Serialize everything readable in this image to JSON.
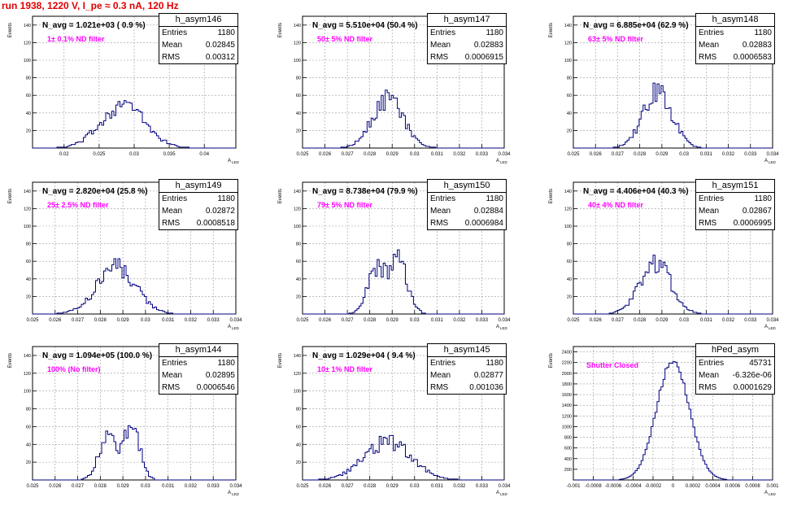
{
  "title": "run 1938,  1220 V, I_pe ≈ 0.3 nA, 120 Hz",
  "colors": {
    "title": "#e00000",
    "hist": "#000080",
    "annotation": "#ff00ff",
    "grid": "#999999"
  },
  "ylabel": "Events",
  "xlabel": "A",
  "xlabel_sub": "LED",
  "chart_data": [
    {
      "type": "histogram",
      "name": "h_asym146",
      "stats": {
        "entries": "1180",
        "mean": "0.02845",
        "rms": "0.00312"
      },
      "navg": "N_avg = 1.021e+03 ( 0.9 %)",
      "filter": "1± 0.1% ND filter",
      "xlim": [
        0.0155,
        0.0445
      ],
      "ylim": [
        0,
        150
      ],
      "xticks": [
        "0.02",
        "0.025",
        "0.03",
        "0.035",
        "0.04"
      ],
      "yticks": [
        "20",
        "40",
        "60",
        "80",
        "100",
        "120",
        "140"
      ],
      "peaks": [
        {
          "mu": 0.0284,
          "sigma": 0.0031,
          "amp": 50
        }
      ]
    },
    {
      "type": "histogram",
      "name": "h_asym147",
      "stats": {
        "entries": "1180",
        "mean": "0.02883",
        "rms": "0.0006915"
      },
      "navg": "N_avg = 5.510e+04 (50.4 %)",
      "filter": "50± 5% ND filter",
      "xlim": [
        0.025,
        0.034
      ],
      "ylim": [
        0,
        150
      ],
      "xticks": [
        "0.025",
        "0.026",
        "0.027",
        "0.028",
        "0.029",
        "0.03",
        "0.031",
        "0.032",
        "0.033",
        "0.034"
      ],
      "yticks": [
        "20",
        "40",
        "60",
        "80",
        "100",
        "120",
        "140"
      ],
      "peaks": [
        {
          "mu": 0.0288,
          "sigma": 0.00069,
          "amp": 57
        }
      ]
    },
    {
      "type": "histogram",
      "name": "h_asym148",
      "stats": {
        "entries": "1180",
        "mean": "0.02883",
        "rms": "0.0006583"
      },
      "navg": "N_avg = 6.885e+04 (62.9 %)",
      "filter": "63± 5% ND filter",
      "xlim": [
        0.025,
        0.034
      ],
      "ylim": [
        0,
        150
      ],
      "xticks": [
        "0.025",
        "0.026",
        "0.027",
        "0.028",
        "0.029",
        "0.03",
        "0.031",
        "0.032",
        "0.033",
        "0.034"
      ],
      "yticks": [
        "20",
        "40",
        "60",
        "80",
        "100",
        "120",
        "140"
      ],
      "peaks": [
        {
          "mu": 0.0288,
          "sigma": 0.00066,
          "amp": 63
        }
      ]
    },
    {
      "type": "histogram",
      "name": "h_asym149",
      "stats": {
        "entries": "1180",
        "mean": "0.02872",
        "rms": "0.0008518"
      },
      "navg": "N_avg = 2.820e+04 (25.8 %)",
      "filter": "25± 2.5% ND filter",
      "xlim": [
        0.025,
        0.034
      ],
      "ylim": [
        0,
        150
      ],
      "xticks": [
        "0.025",
        "0.026",
        "0.027",
        "0.028",
        "0.029",
        "0.03",
        "0.031",
        "0.032",
        "0.033",
        "0.034"
      ],
      "yticks": [
        "20",
        "40",
        "60",
        "80",
        "100",
        "120",
        "140"
      ],
      "peaks": [
        {
          "mu": 0.0287,
          "sigma": 0.00085,
          "amp": 53
        }
      ]
    },
    {
      "type": "histogram",
      "name": "h_asym150",
      "stats": {
        "entries": "1180",
        "mean": "0.02884",
        "rms": "0.0006984"
      },
      "navg": "N_avg = 8.738e+04 (79.9 %)",
      "filter": "79± 5% ND filter",
      "xlim": [
        0.025,
        0.034
      ],
      "ylim": [
        0,
        150
      ],
      "xticks": [
        "0.025",
        "0.026",
        "0.027",
        "0.028",
        "0.029",
        "0.03",
        "0.031",
        "0.032",
        "0.033",
        "0.034"
      ],
      "yticks": [
        "20",
        "40",
        "60",
        "80",
        "100",
        "120",
        "140"
      ],
      "peaks": [
        {
          "mu": 0.0283,
          "sigma": 0.0004,
          "amp": 50
        },
        {
          "mu": 0.0293,
          "sigma": 0.0004,
          "amp": 58
        }
      ]
    },
    {
      "type": "histogram",
      "name": "h_asym151",
      "stats": {
        "entries": "1180",
        "mean": "0.02867",
        "rms": "0.0006995"
      },
      "navg": "N_avg = 4.406e+04 (40.3 %)",
      "filter": "40± 4% ND filter",
      "xlim": [
        0.025,
        0.034
      ],
      "ylim": [
        0,
        150
      ],
      "xticks": [
        "0.025",
        "0.026",
        "0.027",
        "0.028",
        "0.029",
        "0.03",
        "0.031",
        "0.032",
        "0.033",
        "0.034"
      ],
      "yticks": [
        "20",
        "40",
        "60",
        "80",
        "100",
        "120",
        "140"
      ],
      "peaks": [
        {
          "mu": 0.0287,
          "sigma": 0.0007,
          "amp": 58
        }
      ]
    },
    {
      "type": "histogram",
      "name": "h_asym144",
      "stats": {
        "entries": "1180",
        "mean": "0.02895",
        "rms": "0.0006546"
      },
      "navg": "N_avg = 1.094e+05 (100.0 %)",
      "filter": "100% (No filter)",
      "xlim": [
        0.025,
        0.034
      ],
      "ylim": [
        0,
        150
      ],
      "xticks": [
        "0.025",
        "0.026",
        "0.027",
        "0.028",
        "0.029",
        "0.03",
        "0.031",
        "0.032",
        "0.033",
        "0.034"
      ],
      "yticks": [
        "20",
        "40",
        "60",
        "80",
        "100",
        "120",
        "140"
      ],
      "peaks": [
        {
          "mu": 0.0283,
          "sigma": 0.00038,
          "amp": 48
        },
        {
          "mu": 0.0294,
          "sigma": 0.00035,
          "amp": 60
        }
      ]
    },
    {
      "type": "histogram",
      "name": "h_asym145",
      "stats": {
        "entries": "1180",
        "mean": "0.02877",
        "rms": "0.001036"
      },
      "navg": "N_avg = 1.029e+04 ( 9.4 %)",
      "filter": "10± 1% ND filter",
      "xlim": [
        0.025,
        0.034
      ],
      "ylim": [
        0,
        150
      ],
      "xticks": [
        "0.025",
        "0.026",
        "0.027",
        "0.028",
        "0.029",
        "0.03",
        "0.031",
        "0.032",
        "0.033",
        "0.034"
      ],
      "yticks": [
        "20",
        "40",
        "60",
        "80",
        "100",
        "120",
        "140"
      ],
      "peaks": [
        {
          "mu": 0.0288,
          "sigma": 0.00104,
          "amp": 43
        }
      ]
    },
    {
      "type": "histogram",
      "name": "hPed_asym",
      "stats": {
        "entries": "45731",
        "mean": "-6.326e-06",
        "rms": "0.0001629"
      },
      "navg": "",
      "filter": "Shutter Closed",
      "xlim": [
        -0.001,
        0.001
      ],
      "ylim": [
        0,
        2500
      ],
      "xticks": [
        "-0.001",
        "-0.0008",
        "-0.0006",
        "-0.0004",
        "-0.0002",
        "0",
        "0.0002",
        "0.0004",
        "0.0006",
        "0.0008",
        "0.001"
      ],
      "yticks": [
        "200",
        "400",
        "600",
        "800",
        "1000",
        "1200",
        "1400",
        "1600",
        "1800",
        "2000",
        "2200",
        "2400"
      ],
      "peaks": [
        {
          "mu": 0.0,
          "sigma": 0.000163,
          "amp": 2250
        }
      ]
    }
  ]
}
